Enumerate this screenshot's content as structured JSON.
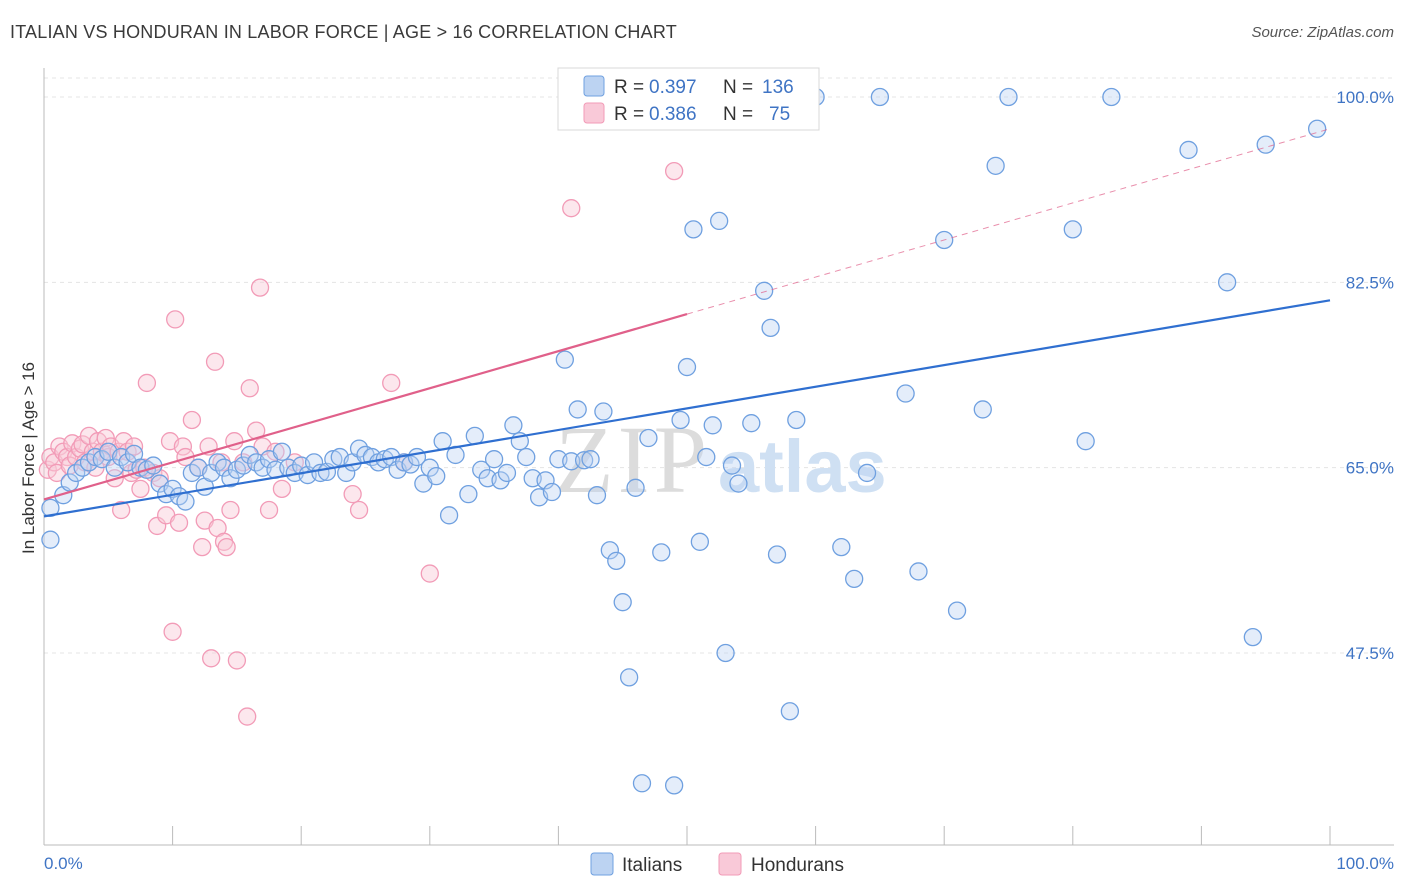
{
  "header": {
    "title": "ITALIAN VS HONDURAN IN LABOR FORCE | AGE > 16 CORRELATION CHART",
    "source": "Source: ZipAtlas.com"
  },
  "watermark": {
    "zip": "ZIP",
    "atlas": "atlas"
  },
  "colors": {
    "italians": "#6fa0e0",
    "hondurans": "#f29bb7",
    "italians_line": "#2f6fd0",
    "hondurans_line": "#e0608a"
  },
  "legend": {
    "r_label": "R =",
    "n_label": "N =",
    "italians": {
      "r": "0.397",
      "n": "136"
    },
    "hondurans": {
      "r": "0.386",
      "n": "75"
    }
  },
  "bottom_legend": {
    "italians": "Italians",
    "hondurans": "Hondurans"
  },
  "chart_data": {
    "type": "scatter",
    "title": "ITALIAN VS HONDURAN IN LABOR FORCE | AGE > 16 CORRELATION CHART",
    "ylabel": "In Labor Force | Age > 16",
    "xlabel": "",
    "xlim": [
      0,
      100
    ],
    "ylim": [
      28,
      100
    ],
    "x_ticks": [
      "0.0%",
      "100.0%"
    ],
    "y_ticks": [
      {
        "value": 100.0,
        "label": "100.0%"
      },
      {
        "value": 82.5,
        "label": "82.5%"
      },
      {
        "value": 65.0,
        "label": "65.0%"
      },
      {
        "value": 47.5,
        "label": "47.5%"
      }
    ],
    "grid": true,
    "legend_position": "top-center",
    "series": [
      {
        "name": "Italians",
        "r": 0.397,
        "n": 136,
        "trend": {
          "x0": 0,
          "y0": 60.4,
          "x1": 100,
          "y1": 80.8,
          "dashed_from": null
        },
        "points": [
          [
            0.5,
            61.2
          ],
          [
            0.5,
            58.2
          ],
          [
            1.5,
            62.4
          ],
          [
            2,
            63.6
          ],
          [
            2.5,
            64.5
          ],
          [
            3,
            65.0
          ],
          [
            3.5,
            65.5
          ],
          [
            4,
            66.0
          ],
          [
            4.5,
            65.8
          ],
          [
            5,
            66.5
          ],
          [
            5.5,
            65.0
          ],
          [
            6,
            66.0
          ],
          [
            6.5,
            65.5
          ],
          [
            7,
            66.3
          ],
          [
            7.5,
            65.0
          ],
          [
            8,
            64.8
          ],
          [
            8.5,
            65.2
          ],
          [
            9,
            63.5
          ],
          [
            9.5,
            62.5
          ],
          [
            10,
            63.0
          ],
          [
            10.5,
            62.3
          ],
          [
            11,
            61.8
          ],
          [
            11.5,
            64.5
          ],
          [
            12,
            65.0
          ],
          [
            12.5,
            63.2
          ],
          [
            13,
            64.5
          ],
          [
            13.5,
            65.5
          ],
          [
            14,
            65.0
          ],
          [
            14.5,
            64.0
          ],
          [
            15,
            64.8
          ],
          [
            15.5,
            65.2
          ],
          [
            16,
            66.2
          ],
          [
            16.5,
            65.5
          ],
          [
            17,
            65.0
          ],
          [
            17.5,
            65.8
          ],
          [
            18,
            64.8
          ],
          [
            18.5,
            66.5
          ],
          [
            19,
            65.0
          ],
          [
            19.5,
            64.5
          ],
          [
            20,
            65.2
          ],
          [
            20.5,
            64.3
          ],
          [
            21,
            65.5
          ],
          [
            21.5,
            64.5
          ],
          [
            22,
            64.6
          ],
          [
            22.5,
            65.8
          ],
          [
            23,
            66.0
          ],
          [
            23.5,
            64.5
          ],
          [
            24,
            65.5
          ],
          [
            24.5,
            66.8
          ],
          [
            25,
            66.2
          ],
          [
            25.5,
            66.0
          ],
          [
            26,
            65.5
          ],
          [
            26.5,
            65.8
          ],
          [
            27,
            66.0
          ],
          [
            27.5,
            64.8
          ],
          [
            28,
            65.5
          ],
          [
            28.5,
            65.3
          ],
          [
            29,
            66.0
          ],
          [
            29.5,
            63.5
          ],
          [
            30,
            65.0
          ],
          [
            30.5,
            64.2
          ],
          [
            31,
            67.5
          ],
          [
            31.5,
            60.5
          ],
          [
            32,
            66.2
          ],
          [
            33,
            62.5
          ],
          [
            33.5,
            68.0
          ],
          [
            34,
            64.8
          ],
          [
            34.5,
            64.0
          ],
          [
            35,
            65.8
          ],
          [
            35.5,
            63.8
          ],
          [
            36,
            64.5
          ],
          [
            36.5,
            69.0
          ],
          [
            37,
            67.5
          ],
          [
            37.5,
            66.0
          ],
          [
            38,
            64.0
          ],
          [
            38.5,
            62.2
          ],
          [
            39,
            63.8
          ],
          [
            39.5,
            62.7
          ],
          [
            40,
            65.8
          ],
          [
            40.5,
            75.2
          ],
          [
            41,
            65.6
          ],
          [
            41.5,
            70.5
          ],
          [
            42,
            65.7
          ],
          [
            42.5,
            65.8
          ],
          [
            43,
            62.4
          ],
          [
            43.5,
            70.3
          ],
          [
            44,
            57.2
          ],
          [
            44.5,
            56.2
          ],
          [
            45,
            52.3
          ],
          [
            45.5,
            45.2
          ],
          [
            46,
            63.1
          ],
          [
            46.5,
            35.2
          ],
          [
            47,
            67.8
          ],
          [
            48,
            57.0
          ],
          [
            49,
            35.0
          ],
          [
            49.5,
            69.5
          ],
          [
            50,
            74.5
          ],
          [
            50.5,
            87.5
          ],
          [
            51,
            58.0
          ],
          [
            51.5,
            66.0
          ],
          [
            52,
            69.0
          ],
          [
            52.5,
            88.3
          ],
          [
            53,
            47.5
          ],
          [
            53.5,
            65.2
          ],
          [
            54,
            63.5
          ],
          [
            55,
            69.2
          ],
          [
            56,
            81.7
          ],
          [
            56.5,
            78.2
          ],
          [
            57,
            56.8
          ],
          [
            58,
            42.0
          ],
          [
            58.5,
            69.5
          ],
          [
            60,
            100.0
          ],
          [
            62,
            57.5
          ],
          [
            63,
            54.5
          ],
          [
            64,
            64.5
          ],
          [
            65,
            100.0
          ],
          [
            67,
            72.0
          ],
          [
            68,
            55.2
          ],
          [
            70,
            86.5
          ],
          [
            71,
            51.5
          ],
          [
            73,
            70.5
          ],
          [
            74,
            93.5
          ],
          [
            75,
            100.0
          ],
          [
            80,
            87.5
          ],
          [
            81,
            67.5
          ],
          [
            83,
            100.0
          ],
          [
            89,
            95.0
          ],
          [
            92,
            82.5
          ],
          [
            94,
            49.0
          ],
          [
            95,
            95.5
          ],
          [
            99,
            97.0
          ]
        ]
      },
      {
        "name": "Hondurans",
        "r": 0.386,
        "n": 75,
        "trend": {
          "x0": 0,
          "y0": 62.0,
          "x1": 50,
          "y1": 79.5,
          "dashed_to": {
            "x": 100,
            "y": 97.0
          }
        },
        "points": [
          [
            0.3,
            64.8
          ],
          [
            0.5,
            66.0
          ],
          [
            0.8,
            65.5
          ],
          [
            1,
            64.5
          ],
          [
            1.2,
            67.0
          ],
          [
            1.5,
            66.5
          ],
          [
            1.8,
            66.0
          ],
          [
            2,
            65.2
          ],
          [
            2.2,
            67.3
          ],
          [
            2.5,
            66.0
          ],
          [
            2.8,
            66.8
          ],
          [
            3,
            67.2
          ],
          [
            3.2,
            65.5
          ],
          [
            3.5,
            68.0
          ],
          [
            3.8,
            66.5
          ],
          [
            4,
            65.0
          ],
          [
            4.2,
            67.5
          ],
          [
            4.5,
            66.5
          ],
          [
            4.8,
            67.8
          ],
          [
            5,
            66.0
          ],
          [
            5.2,
            67.0
          ],
          [
            5.5,
            64.0
          ],
          [
            5.8,
            66.5
          ],
          [
            6,
            61.0
          ],
          [
            6.2,
            67.5
          ],
          [
            6.5,
            66.5
          ],
          [
            6.8,
            64.5
          ],
          [
            7,
            67.0
          ],
          [
            7.2,
            64.8
          ],
          [
            7.5,
            63.0
          ],
          [
            7.8,
            65.0
          ],
          [
            8,
            73.0
          ],
          [
            8.5,
            64.5
          ],
          [
            8.8,
            59.5
          ],
          [
            9,
            64.0
          ],
          [
            9.5,
            60.5
          ],
          [
            9.8,
            67.5
          ],
          [
            10,
            49.5
          ],
          [
            10.2,
            79.0
          ],
          [
            10.5,
            59.8
          ],
          [
            10.8,
            67.0
          ],
          [
            11,
            66.0
          ],
          [
            11.5,
            69.5
          ],
          [
            12,
            65.0
          ],
          [
            12.3,
            57.5
          ],
          [
            12.5,
            60.0
          ],
          [
            12.8,
            67.0
          ],
          [
            13,
            47.0
          ],
          [
            13.3,
            75.0
          ],
          [
            13.5,
            59.3
          ],
          [
            13.8,
            65.5
          ],
          [
            14,
            58.0
          ],
          [
            14.2,
            57.5
          ],
          [
            14.5,
            61.0
          ],
          [
            14.8,
            67.5
          ],
          [
            15,
            46.8
          ],
          [
            15.5,
            65.5
          ],
          [
            15.8,
            41.5
          ],
          [
            16,
            72.5
          ],
          [
            16.5,
            68.5
          ],
          [
            16.8,
            82.0
          ],
          [
            17,
            67.0
          ],
          [
            17.5,
            61.0
          ],
          [
            18,
            66.5
          ],
          [
            18.5,
            63.0
          ],
          [
            19.5,
            65.5
          ],
          [
            24,
            62.5
          ],
          [
            24.5,
            61.0
          ],
          [
            27,
            73.0
          ],
          [
            28,
            65.5
          ],
          [
            30,
            55.0
          ],
          [
            41,
            89.5
          ],
          [
            42,
            100.0
          ],
          [
            49,
            93.0
          ],
          [
            51,
            100.0
          ]
        ]
      }
    ]
  }
}
